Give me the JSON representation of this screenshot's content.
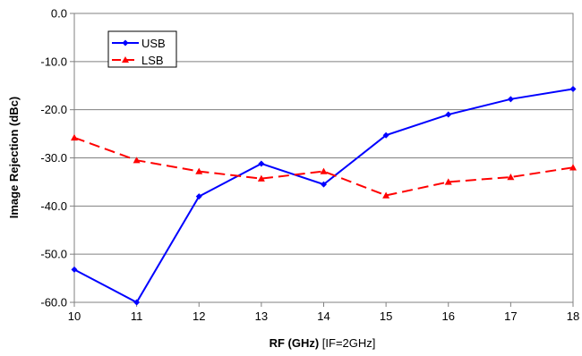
{
  "chart_data": {
    "type": "line",
    "x": [
      10,
      11,
      12,
      13,
      14,
      15,
      16,
      17,
      18
    ],
    "series": [
      {
        "name": "USB",
        "values": [
          -53.2,
          -60.0,
          -38.0,
          -31.2,
          -35.5,
          -25.3,
          -21.0,
          -17.8,
          -15.7
        ],
        "color": "#0000ff",
        "marker": "diamond",
        "line": "solid"
      },
      {
        "name": "LSB",
        "values": [
          -25.8,
          -30.5,
          -32.8,
          -34.3,
          -32.8,
          -37.8,
          -35.0,
          -34.0,
          -32.0
        ],
        "color": "#ff0000",
        "marker": "triangle",
        "line": "dashed"
      }
    ],
    "xlabel_bold": "RF (GHz)",
    "xlabel_rest": " [IF=2GHz]",
    "ylabel": "Image Rejection (dBc)",
    "xlim": [
      10,
      18
    ],
    "ylim": [
      -60,
      0
    ],
    "yticks": [
      "0.0",
      "-10.0",
      "-20.0",
      "-30.0",
      "-40.0",
      "-50.0",
      "-60.0"
    ],
    "xticks": [
      "10",
      "11",
      "12",
      "13",
      "14",
      "15",
      "16",
      "17",
      "18"
    ],
    "grid": "horizontal",
    "legend_position": "top-left"
  }
}
